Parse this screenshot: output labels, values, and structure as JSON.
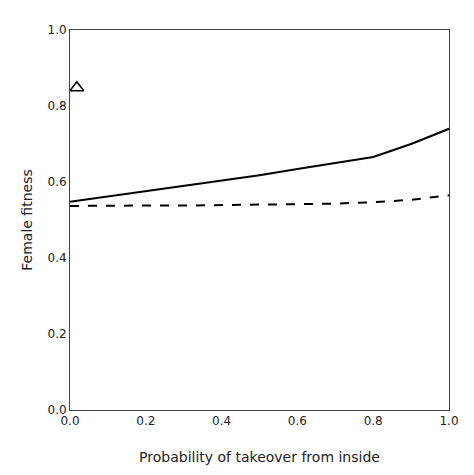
{
  "chart_data": {
    "type": "line",
    "xlabel": "Probability of takeover from inside",
    "ylabel": "Female fitness",
    "xlim": [
      0.0,
      1.0
    ],
    "ylim": [
      0.0,
      1.0
    ],
    "xticks": [
      {
        "value": 0.0,
        "label": "0.0"
      },
      {
        "value": 0.2,
        "label": "0.2"
      },
      {
        "value": 0.4,
        "label": "0.4"
      },
      {
        "value": 0.6,
        "label": "0.6"
      },
      {
        "value": 0.8,
        "label": "0.8"
      },
      {
        "value": 1.0,
        "label": "1.0"
      }
    ],
    "yticks": [
      {
        "value": 0.0,
        "label": "0.0"
      },
      {
        "value": 0.2,
        "label": "0.2"
      },
      {
        "value": 0.4,
        "label": "0.4"
      },
      {
        "value": 0.6,
        "label": "0.6"
      },
      {
        "value": 0.8,
        "label": "0.8"
      },
      {
        "value": 1.0,
        "label": "1.0"
      }
    ],
    "grid": false,
    "series": [
      {
        "type": "line",
        "color": "black",
        "line_style": "solid",
        "x": [
          0.0,
          0.1,
          0.2,
          0.3,
          0.4,
          0.5,
          0.6,
          0.7,
          0.8,
          0.9,
          1.0
        ],
        "values": [
          0.548,
          0.562,
          0.576,
          0.59,
          0.604,
          0.618,
          0.634,
          0.65,
          0.666,
          0.7,
          0.74
        ]
      },
      {
        "type": "line",
        "color": "black",
        "line_style": "dashed",
        "x": [
          0.0,
          0.1,
          0.2,
          0.3,
          0.4,
          0.5,
          0.6,
          0.7,
          0.8,
          0.9,
          1.0
        ],
        "values": [
          0.537,
          0.538,
          0.538,
          0.538,
          0.539,
          0.54,
          0.541,
          0.543,
          0.547,
          0.553,
          0.565
        ]
      },
      {
        "type": "scatter",
        "color": "black",
        "marker": "triangle",
        "x": [
          0.018
        ],
        "values": [
          0.848
        ]
      }
    ]
  }
}
